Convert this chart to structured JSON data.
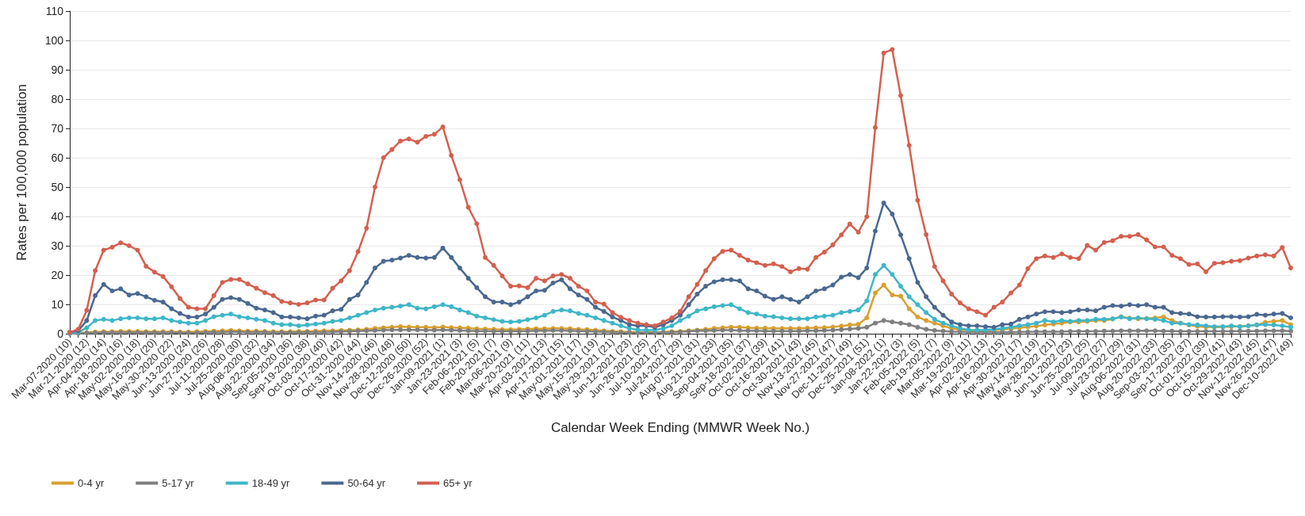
{
  "chart_data": {
    "type": "line",
    "xlabel": "Calendar Week Ending (MMWR Week No.)",
    "ylabel": "Rates per 100,000 population",
    "categories": [
      "Mar-07-2020 (10)",
      null,
      "Mar-21-2020 (12)",
      null,
      "Apr-04-2020 (14)",
      null,
      "Apr-18-2020 (16)",
      null,
      "May-02-2020 (18)",
      null,
      "May-16-2020 (20)",
      null,
      "May-30-2020 (22)",
      null,
      "Jun-13-2020 (24)",
      null,
      "Jun-27-2020 (26)",
      null,
      "Jul-11-2020 (28)",
      null,
      "Jul-25-2020 (30)",
      null,
      "Aug-08-2020 (32)",
      null,
      "Aug-22-2020 (34)",
      null,
      "Sep-05-2020 (36)",
      null,
      "Sep-19-2020 (38)",
      null,
      "Oct-03-2020 (40)",
      null,
      "Oct-17-2020 (42)",
      null,
      "Oct-31-2020 (44)",
      null,
      "Nov-14-2020 (46)",
      null,
      "Nov-28-2020 (48)",
      null,
      "Dec-12-2020 (50)",
      null,
      "Dec-26-2020 (52)",
      null,
      "Jan-09-2021 (1)",
      null,
      "Jan-23-2021 (3)",
      null,
      "Feb-06-2021 (5)",
      null,
      "Feb-20-2021 (7)",
      null,
      "Mar-06-2021 (9)",
      null,
      "Mar-20-2021 (11)",
      null,
      "Apr-03-2021 (13)",
      null,
      "Apr-17-2021 (15)",
      null,
      "May-01-2021 (17)",
      null,
      "May-15-2021 (19)",
      null,
      "May-29-2021 (21)",
      null,
      "Jun-12-2021 (23)",
      null,
      "Jun-26-2021 (25)",
      null,
      "Jul-10-2021 (27)",
      null,
      "Jul-24-2021 (29)",
      null,
      "Aug-07-2021 (31)",
      null,
      "Aug-21-2021 (33)",
      null,
      "Sep-04-2021 (35)",
      null,
      "Sep-18-2021 (37)",
      null,
      "Oct-02-2021 (39)",
      null,
      "Oct-16-2021 (41)",
      null,
      "Oct-30-2021 (43)",
      null,
      "Nov-13-2021 (45)",
      null,
      "Nov-27-2021 (47)",
      null,
      "Dec-11-2021 (49)",
      null,
      "Dec-25-2021 (51)",
      null,
      "Jan-08-2022 (1)",
      null,
      "Jan-22-2022 (3)",
      null,
      "Feb-05-2022 (5)",
      null,
      "Feb-19-2022 (7)",
      null,
      "Mar-05-2022 (9)",
      null,
      "Mar-19-2022 (11)",
      null,
      "Apr-02-2022 (13)",
      null,
      "Apr-16-2022 (15)",
      null,
      "Apr-30-2022 (17)",
      null,
      "May-14-2022 (19)",
      null,
      "May-28-2022 (21)",
      null,
      "Jun-11-2022 (23)",
      null,
      "Jun-25-2022 (25)",
      null,
      "Jul-09-2022 (27)",
      null,
      "Jul-23-2022 (29)",
      null,
      "Aug-06-2022 (31)",
      null,
      "Aug-20-2022 (33)",
      null,
      "Sep-03-2022 (35)",
      null,
      "Sep-17-2022 (37)",
      null,
      "Oct-01-2022 (39)",
      null,
      "Oct-15-2022 (41)",
      null,
      "Oct-29-2022 (43)",
      null,
      "Nov-12-2022 (45)",
      null,
      "Nov-26-2022 (47)",
      null,
      "Dec-10-2022 (49)"
    ],
    "series": [
      {
        "name": "0-4 yr",
        "color": "#d9a030",
        "values": [
          0.1,
          0.2,
          0.4,
          0.6,
          0.7,
          0.7,
          0.8,
          0.8,
          0.8,
          0.7,
          0.7,
          0.7,
          0.7,
          0.6,
          0.6,
          0.7,
          0.8,
          0.9,
          1,
          1.1,
          1,
          0.9,
          0.9,
          0.8,
          0.7,
          0.7,
          0.7,
          0.8,
          0.8,
          0.9,
          1,
          1,
          1.1,
          1.2,
          1.3,
          1.5,
          1.8,
          2,
          2.2,
          2.4,
          2.3,
          2.2,
          2.2,
          2.1,
          2.3,
          2.1,
          2,
          1.9,
          1.7,
          1.6,
          1.5,
          1.4,
          1.4,
          1.5,
          1.6,
          1.7,
          1.7,
          1.8,
          1.8,
          1.7,
          1.5,
          1.4,
          1.2,
          1,
          0.8,
          0.7,
          0.6,
          0.5,
          0.5,
          0.5,
          0.6,
          0.7,
          0.8,
          1,
          1.2,
          1.5,
          1.8,
          2,
          2.2,
          2.2,
          2,
          1.9,
          1.9,
          1.8,
          1.8,
          1.8,
          1.8,
          1.9,
          2,
          2.1,
          2.3,
          2.6,
          3,
          3.2,
          5.4,
          13.9,
          16.6,
          13.2,
          12.8,
          8.5,
          5.7,
          4.5,
          3.6,
          2.7,
          1.8,
          1.3,
          1.2,
          1.1,
          1.1,
          1.2,
          1.4,
          1.7,
          2,
          2.3,
          2.6,
          3,
          3.3,
          3.6,
          4,
          4,
          4.2,
          4.5,
          4.5,
          5,
          5.8,
          5.3,
          5.1,
          5.2,
          5.4,
          5.7,
          4.5,
          3.6,
          3,
          2.5,
          2.3,
          2.2,
          2.3,
          2.4,
          2.5,
          2.7,
          3,
          3.9,
          4.2,
          4.5,
          3.1
        ]
      },
      {
        "name": "5-17 yr",
        "color": "#7f7f7f",
        "values": [
          0.1,
          0.1,
          0.2,
          0.3,
          0.4,
          0.4,
          0.4,
          0.4,
          0.4,
          0.4,
          0.4,
          0.4,
          0.4,
          0.3,
          0.3,
          0.3,
          0.4,
          0.5,
          0.5,
          0.6,
          0.6,
          0.5,
          0.5,
          0.5,
          0.4,
          0.4,
          0.4,
          0.4,
          0.5,
          0.5,
          0.5,
          0.6,
          0.7,
          0.8,
          0.9,
          1,
          1.1,
          1.2,
          1.3,
          1.3,
          1.3,
          1.3,
          1.2,
          1.2,
          1.3,
          1.2,
          1.1,
          1,
          0.9,
          0.9,
          0.8,
          0.8,
          0.8,
          0.8,
          0.9,
          1,
          1,
          1.1,
          1.1,
          1,
          0.9,
          0.8,
          0.7,
          0.6,
          0.5,
          0.4,
          0.3,
          0.3,
          0.3,
          0.3,
          0.4,
          0.5,
          0.6,
          0.8,
          1,
          1,
          1.1,
          1.2,
          1.2,
          1.1,
          1,
          1,
          0.9,
          0.9,
          0.9,
          0.9,
          0.9,
          1,
          1,
          1.1,
          1.2,
          1.4,
          1.6,
          1.8,
          2.2,
          3.6,
          4.5,
          4,
          3.6,
          3.1,
          2.2,
          1.5,
          1.1,
          0.9,
          0.7,
          0.6,
          0.5,
          0.5,
          0.5,
          0.5,
          0.5,
          0.5,
          0.6,
          0.6,
          0.7,
          0.7,
          0.7,
          0.7,
          0.8,
          0.8,
          0.8,
          0.8,
          0.9,
          0.9,
          1,
          1,
          1,
          1,
          1,
          0.9,
          0.9,
          0.8,
          0.8,
          0.8,
          0.8,
          0.8,
          0.8,
          0.8,
          0.9,
          0.9,
          0.9,
          1,
          1,
          1,
          0.9
        ]
      },
      {
        "name": "18-49 yr",
        "color": "#3fb6c9",
        "values": [
          0.2,
          0.5,
          2,
          4.5,
          4.9,
          4.5,
          5.1,
          5.4,
          5.4,
          5.1,
          5.1,
          5.4,
          4.5,
          4,
          3.6,
          3.6,
          4.5,
          5.8,
          6.3,
          6.7,
          5.8,
          5.4,
          4.9,
          4.5,
          3.6,
          3.1,
          3.1,
          2.7,
          3,
          3.3,
          3.6,
          4.2,
          4.5,
          5.4,
          6.3,
          7.2,
          8.1,
          8.7,
          9,
          9.4,
          9.9,
          8.7,
          8.5,
          9.2,
          9.9,
          9.2,
          8.1,
          7.2,
          6,
          5.4,
          4.8,
          4.2,
          4,
          4.2,
          4.8,
          5.4,
          6.3,
          7.6,
          8.1,
          7.8,
          6.9,
          6.3,
          5.4,
          4.5,
          3.6,
          2.7,
          1.8,
          1.3,
          1.2,
          1.2,
          1.8,
          2.7,
          4.5,
          6,
          7.8,
          8.5,
          9.2,
          9.6,
          9.9,
          8.5,
          7.2,
          6.7,
          6,
          5.8,
          5.4,
          5.1,
          5.1,
          5.1,
          5.7,
          6,
          6.3,
          7.2,
          7.6,
          8.1,
          11.2,
          20.2,
          23.3,
          20.2,
          16.2,
          12.6,
          9.9,
          7.2,
          4.9,
          3.6,
          2.7,
          1.8,
          1.3,
          1.2,
          1.3,
          1.5,
          1.8,
          2.2,
          2.7,
          3.1,
          3.6,
          4.5,
          4,
          4.5,
          4.2,
          4.5,
          4.5,
          4.9,
          4.9,
          5.1,
          5.7,
          5.1,
          5.4,
          5.1,
          4.9,
          4.5,
          3.6,
          3.6,
          3.1,
          3,
          2.7,
          2.4,
          2.4,
          2.7,
          2.4,
          2.7,
          3,
          3.1,
          3,
          2.7,
          2.2
        ]
      },
      {
        "name": "50-64 yr",
        "color": "#4a6890",
        "values": [
          0.5,
          1,
          4.5,
          13,
          16.8,
          14.6,
          15.3,
          13.2,
          13.7,
          12.6,
          11.4,
          10.8,
          8.5,
          6.9,
          5.7,
          5.7,
          6.7,
          9,
          11.7,
          12.3,
          11.7,
          10.3,
          8.7,
          8.1,
          7.2,
          5.7,
          5.7,
          5.4,
          5.1,
          6,
          6.3,
          7.8,
          8.3,
          11.7,
          13.2,
          17.5,
          22.4,
          24.7,
          25.1,
          25.8,
          26.7,
          26,
          25.8,
          26,
          29.2,
          26,
          22.4,
          18.9,
          15.7,
          12.6,
          10.8,
          10.8,
          9.9,
          10.8,
          12.6,
          14.6,
          14.8,
          17.3,
          18.4,
          15.3,
          13.2,
          11.7,
          9,
          7.6,
          5.7,
          4.5,
          3.1,
          2.7,
          2.7,
          2.2,
          3.1,
          4.5,
          6.3,
          9.9,
          13.5,
          16.2,
          17.7,
          18.4,
          18.4,
          18,
          15.3,
          14.6,
          12.8,
          11.7,
          12.6,
          11.7,
          10.8,
          12.6,
          14.6,
          15.3,
          16.6,
          19.3,
          20.2,
          19.1,
          22.4,
          35,
          44.6,
          40.8,
          33.7,
          25.6,
          17.5,
          12.6,
          9,
          6.3,
          4,
          3.1,
          2.7,
          2.7,
          2.4,
          2.2,
          3.1,
          3.3,
          4.9,
          5.7,
          6.7,
          7.5,
          7.5,
          7.2,
          7.5,
          8.1,
          8.1,
          7.8,
          9,
          9.6,
          9.4,
          9.9,
          9.6,
          9.9,
          9,
          9,
          7.2,
          6.9,
          6.7,
          5.8,
          5.7,
          5.7,
          5.8,
          5.8,
          5.7,
          5.8,
          6.6,
          6.3,
          6.7,
          6.9,
          5.4
        ]
      },
      {
        "name": "65+ yr",
        "color": "#d4604f",
        "values": [
          0.5,
          1.5,
          8,
          21.5,
          28.5,
          29.5,
          31,
          30,
          28.5,
          23,
          21,
          19.5,
          16,
          12,
          9,
          8.5,
          8.5,
          13,
          17.5,
          18.5,
          18.5,
          17,
          15.5,
          14,
          13,
          11,
          10.5,
          10,
          10.5,
          11.5,
          11.5,
          15.5,
          18,
          21.5,
          28,
          36,
          50,
          60,
          62.8,
          65.7,
          66.4,
          65.3,
          67.3,
          68,
          70.5,
          60.8,
          52.5,
          43.1,
          37.5,
          26,
          23.3,
          19.7,
          16.2,
          16.3,
          15.7,
          18.9,
          18,
          19.7,
          20.2,
          18.9,
          16.2,
          14.6,
          10.8,
          10.1,
          7.2,
          5.6,
          4.5,
          3.6,
          3.1,
          2.7,
          4,
          5.4,
          7.6,
          12.6,
          16.8,
          21.5,
          25.6,
          28.1,
          28.5,
          26.7,
          25.1,
          24.2,
          23.3,
          23.8,
          22.9,
          21.1,
          22.2,
          22,
          26,
          27.8,
          30.3,
          33.7,
          37.4,
          34.6,
          39.9,
          70.3,
          95.7,
          96.9,
          81.2,
          64.2,
          45.5,
          33.8,
          22.9,
          18,
          13.5,
          10.5,
          8.5,
          7.5,
          6.3,
          9,
          10.8,
          13.9,
          16.6,
          22.2,
          25.6,
          26.5,
          26,
          27.2,
          26,
          25.6,
          30.1,
          28.5,
          31.1,
          31.7,
          33.2,
          33.2,
          33.8,
          32,
          29.6,
          29.6,
          26.7,
          25.6,
          23.6,
          23.8,
          21.1,
          24,
          24.2,
          24.7,
          24.9,
          25.8,
          26.5,
          26.9,
          26.5,
          29.4,
          22.4
        ]
      }
    ],
    "ylim": [
      0,
      110
    ],
    "yticks": [
      0,
      10,
      20,
      30,
      40,
      50,
      60,
      70,
      80,
      90,
      100,
      110
    ],
    "grid": "y",
    "legend": "bottom left",
    "marker": "circle"
  }
}
